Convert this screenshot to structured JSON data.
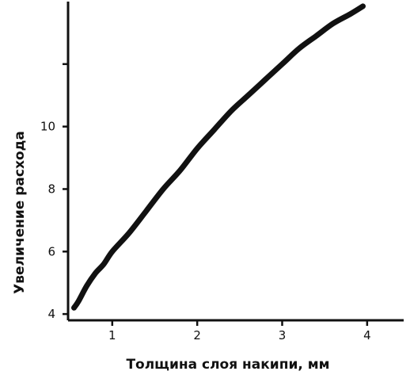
{
  "chart_data": {
    "type": "line",
    "title": "",
    "xlabel": "Толщина слоя накипи, мм",
    "ylabel": "Увеличение расхода",
    "xlim": [
      0.48,
      4.43
    ],
    "ylim": [
      3.8,
      14
    ],
    "x_ticks": [
      1,
      2,
      3,
      4
    ],
    "x_tick_labels": [
      "1",
      "2",
      "3",
      "4"
    ],
    "y_ticks": [
      4,
      6,
      8,
      10,
      12
    ],
    "y_tick_labels": [
      "4",
      "6",
      "8",
      "10",
      ""
    ],
    "grid": false,
    "legend": "none",
    "series": [
      {
        "color": "#111111",
        "x": [
          0.55,
          0.6,
          0.7,
          0.8,
          0.9,
          1.0,
          1.2,
          1.4,
          1.6,
          1.8,
          2.0,
          2.2,
          2.4,
          2.6,
          2.8,
          3.0,
          3.2,
          3.4,
          3.6,
          3.8,
          3.95
        ],
        "y": [
          4.2,
          4.4,
          4.9,
          5.3,
          5.6,
          6.0,
          6.6,
          7.3,
          8.0,
          8.6,
          9.3,
          9.9,
          10.5,
          11.0,
          11.5,
          12.0,
          12.5,
          12.9,
          13.3,
          13.6,
          13.85
        ]
      }
    ]
  }
}
